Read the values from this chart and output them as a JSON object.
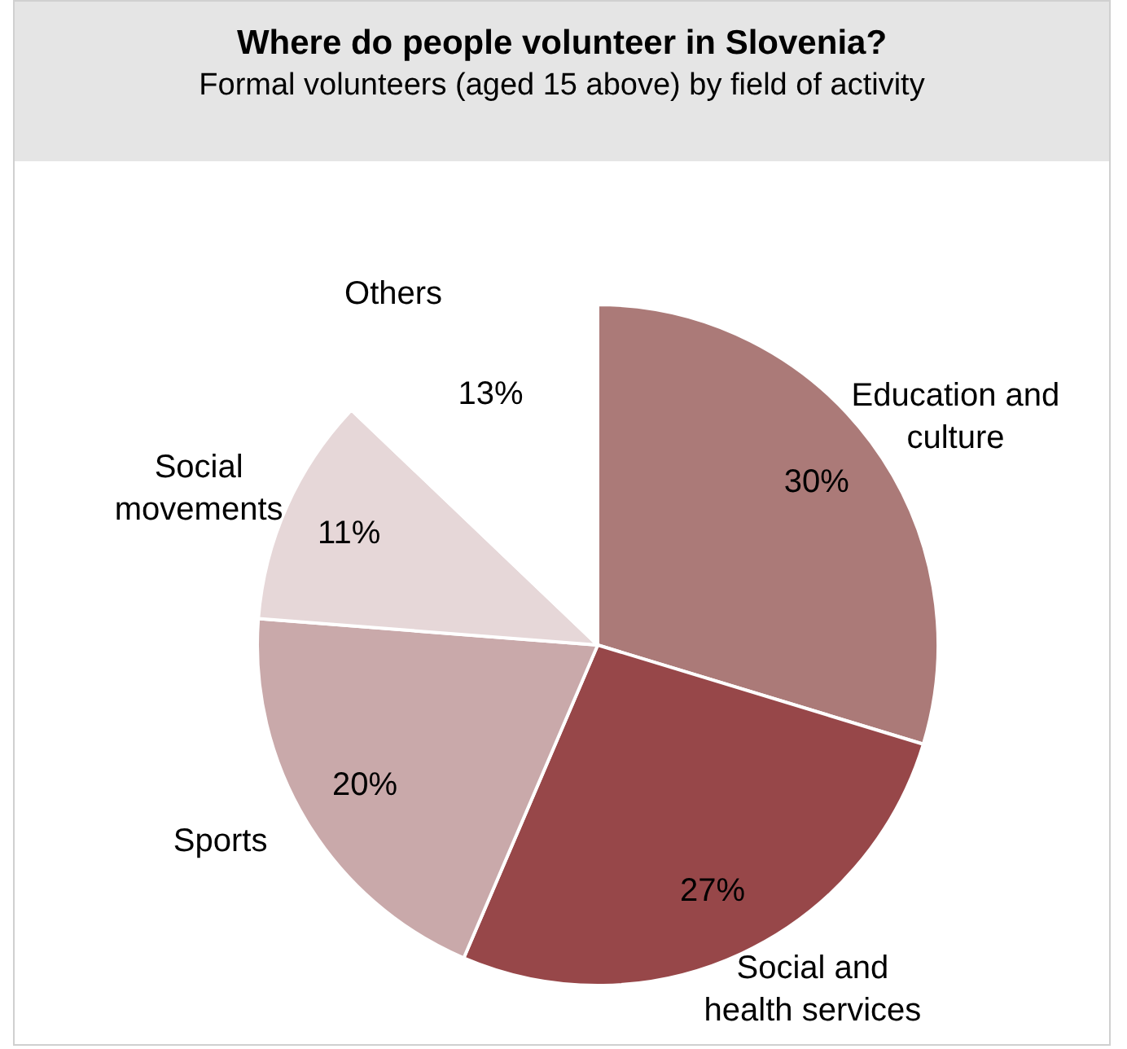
{
  "chart_data": {
    "type": "pie",
    "title": "Where do people volunteer in Slovenia?",
    "subtitle": "Formal volunteers (aged 15 above) by field of activity",
    "categories": [
      "Education and culture",
      "Social and health services",
      "Sports",
      "Social movements",
      "Others"
    ],
    "values": [
      30,
      27,
      20,
      11,
      13
    ],
    "colors": [
      "#ab7a78",
      "#974749",
      "#c9a9aa",
      "#e6d7d8",
      "#ffffff"
    ],
    "value_labels": [
      "30%",
      "27%",
      "20%",
      "11%",
      "13%"
    ],
    "legend": false
  }
}
